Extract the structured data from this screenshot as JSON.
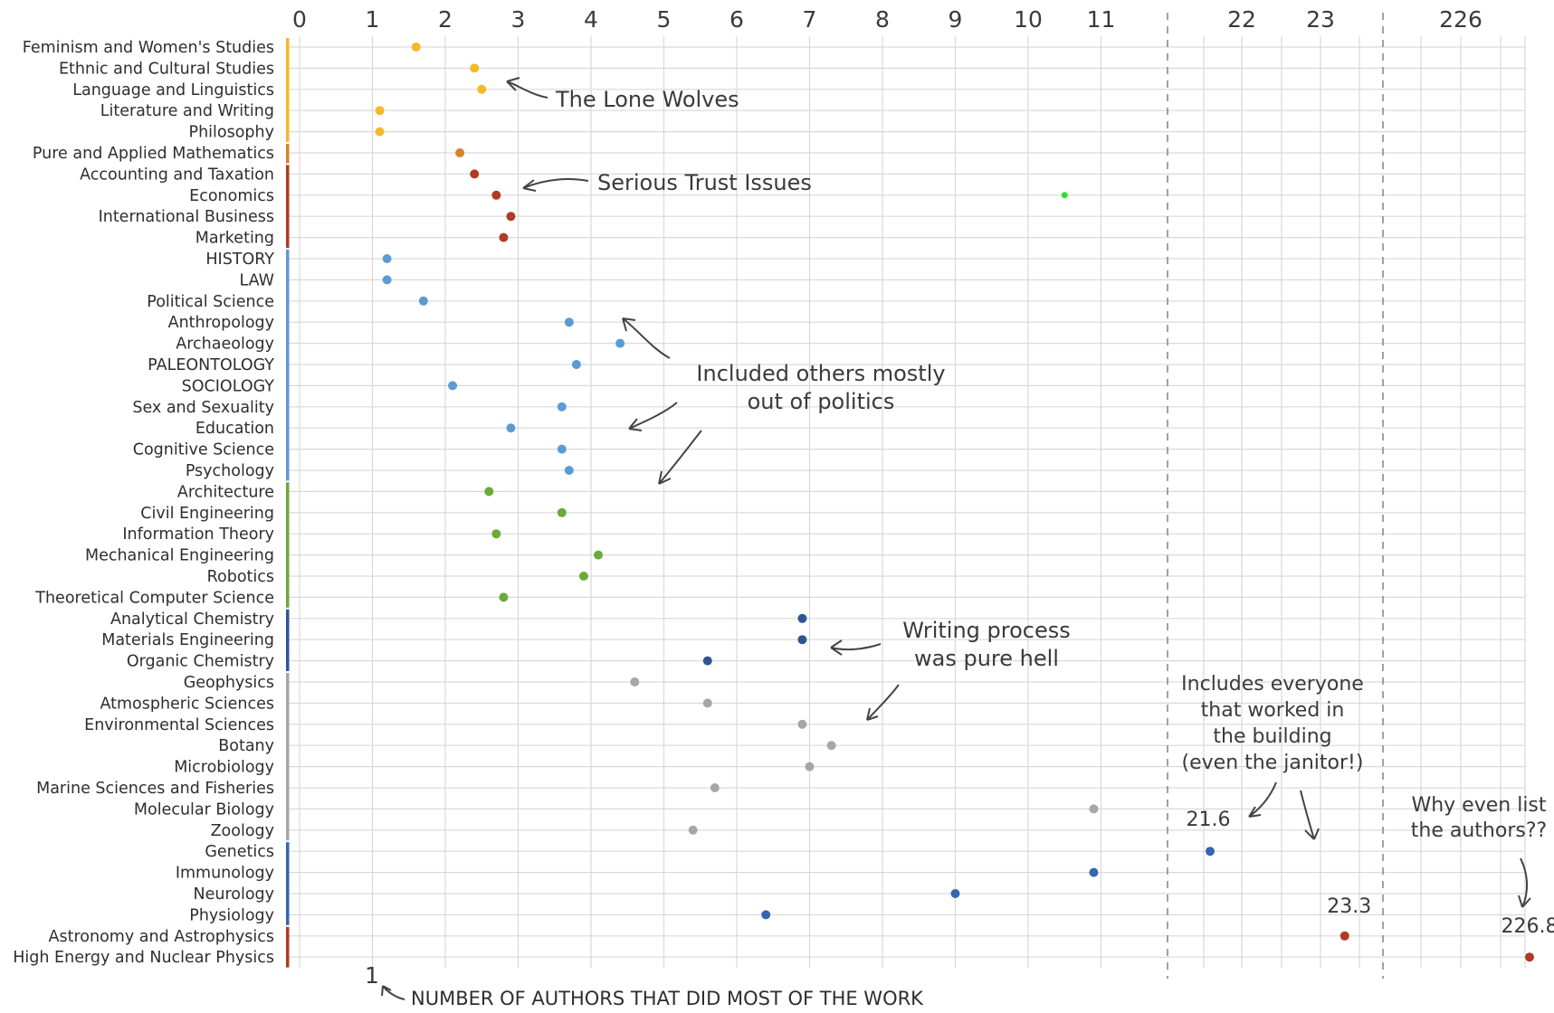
{
  "chart_data": {
    "type": "scatter",
    "title": "",
    "xlabel": "NUMBER OF AUTHORS THAT DID MOST OF THE WORK",
    "xlabel_tick": "1",
    "x_ticks": [
      "0",
      "1",
      "2",
      "3",
      "4",
      "5",
      "6",
      "7",
      "8",
      "9",
      "10",
      "11",
      "22",
      "23",
      "226"
    ],
    "axis_breaks": [
      "after 11",
      "after 23"
    ],
    "grid": true,
    "group_colors": {
      "humanities": "#f6b829",
      "math": "#d9822b",
      "business": "#b03a22",
      "social": "#5b9bd5",
      "engineering": "#6aaa3a",
      "chemistry": "#2e5597",
      "earth": "#a6a6a6",
      "bio": "#3465b0",
      "physics": "#b03a22",
      "outlier": "#33dd33"
    },
    "categories": [
      "Feminism and Women's Studies",
      "Ethnic and Cultural Studies",
      "Language and Linguistics",
      "Literature and Writing",
      "Philosophy",
      "Pure and Applied Mathematics",
      "Accounting and Taxation",
      "Economics",
      "International Business",
      "Marketing",
      "HISTORY",
      "LAW",
      "Political Science",
      "Anthropology",
      "Archaeology",
      "PALEONTOLOGY",
      "SOCIOLOGY",
      "Sex and Sexuality",
      "Education",
      "Cognitive Science",
      "Psychology",
      "Architecture",
      "Civil Engineering",
      "Information Theory",
      "Mechanical Engineering",
      "Robotics",
      "Theoretical Computer Science",
      "Analytical Chemistry",
      "Materials Engineering",
      "Organic Chemistry",
      "Geophysics",
      "Atmospheric Sciences",
      "Environmental Sciences",
      "Botany",
      "Microbiology",
      "Marine Sciences and Fisheries",
      "Molecular Biology",
      "Zoology",
      "Genetics",
      "Immunology",
      "Neurology",
      "Physiology",
      "Astronomy and Astrophysics",
      "High Energy and Nuclear Physics"
    ],
    "values": [
      1.6,
      2.4,
      2.5,
      1.1,
      1.1,
      2.2,
      2.4,
      2.7,
      2.9,
      2.8,
      1.2,
      1.2,
      1.7,
      3.7,
      4.4,
      3.8,
      2.1,
      3.6,
      2.9,
      3.6,
      3.7,
      2.6,
      3.6,
      2.7,
      4.1,
      3.9,
      2.8,
      6.9,
      6.9,
      5.6,
      4.6,
      5.6,
      6.9,
      7.3,
      7.0,
      5.7,
      10.9,
      5.4,
      21.6,
      10.9,
      9.0,
      6.4,
      23.3,
      226.8
    ],
    "groups": [
      "humanities",
      "humanities",
      "humanities",
      "humanities",
      "humanities",
      "math",
      "business",
      "business",
      "business",
      "business",
      "social",
      "social",
      "social",
      "social",
      "social",
      "social",
      "social",
      "social",
      "social",
      "social",
      "social",
      "engineering",
      "engineering",
      "engineering",
      "engineering",
      "engineering",
      "engineering",
      "chemistry",
      "chemistry",
      "chemistry",
      "earth",
      "earth",
      "earth",
      "earth",
      "earth",
      "earth",
      "earth",
      "earth",
      "bio",
      "bio",
      "bio",
      "bio",
      "physics",
      "physics"
    ],
    "outlier_point": {
      "category": "Economics",
      "value": 10.5
    },
    "value_labels": [
      {
        "category": "Genetics",
        "text": "21.6"
      },
      {
        "category": "Astronomy and Astrophysics",
        "text": "23.3"
      },
      {
        "category": "High Energy and Nuclear Physics",
        "text": "226.8"
      }
    ],
    "annotations": [
      {
        "lines": [
          "The Lone Wolves"
        ]
      },
      {
        "lines": [
          "Serious Trust Issues"
        ]
      },
      {
        "lines": [
          "Included others mostly",
          "out of politics"
        ]
      },
      {
        "lines": [
          "Writing process",
          "was pure hell"
        ]
      },
      {
        "lines": [
          "Includes everyone",
          "that worked in",
          "the building",
          "(even the janitor!)"
        ]
      },
      {
        "lines": [
          "Why even list",
          "the authors??"
        ]
      }
    ]
  }
}
